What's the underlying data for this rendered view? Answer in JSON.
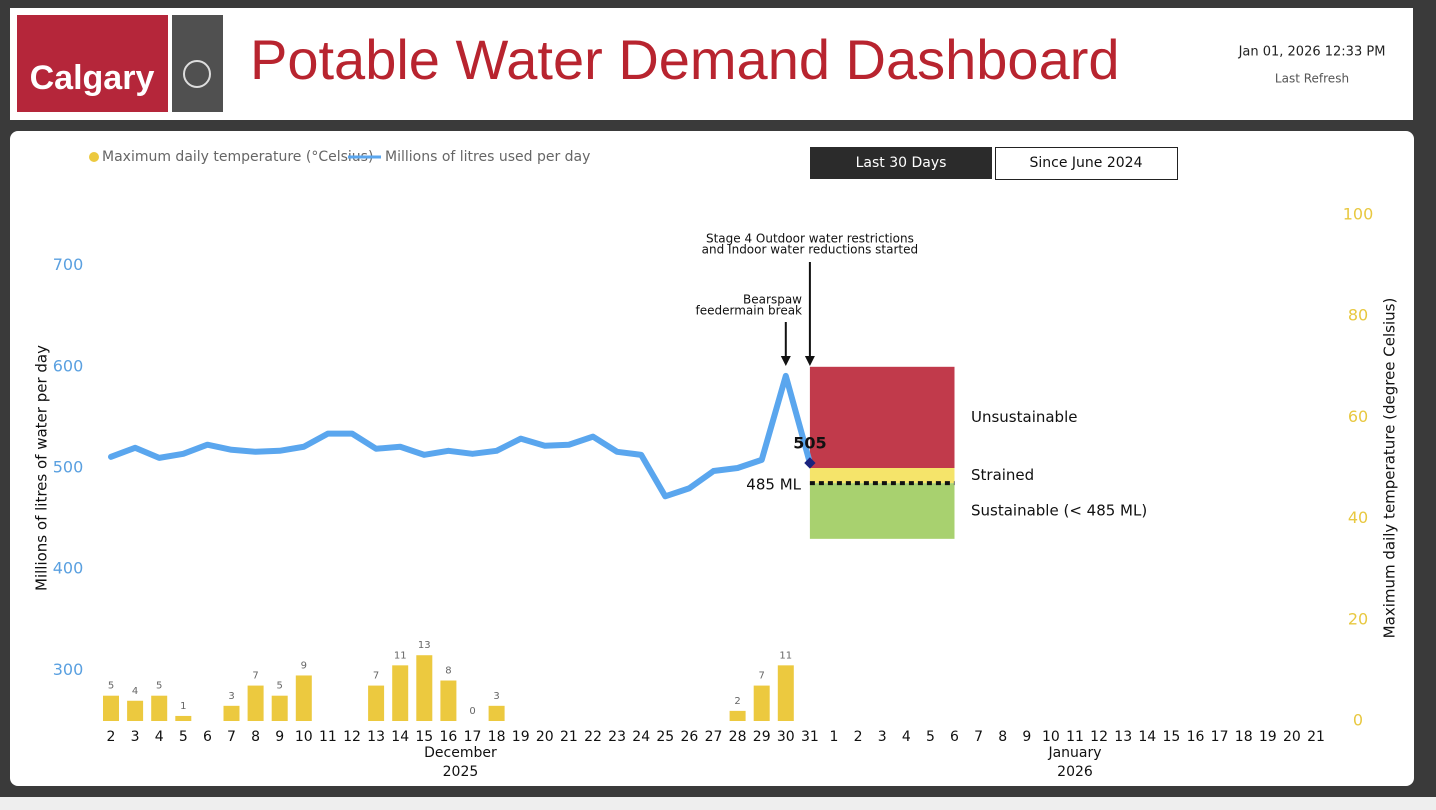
{
  "header": {
    "logo": "Calgary",
    "title": "Potable Water Demand Dashboard",
    "refresh_time": "Jan 01, 2026 12:33 PM",
    "refresh_label": "Last Refresh"
  },
  "buttons": [
    "Last 30 Days",
    "Since June 2024"
  ],
  "chart_data": {
    "type": "combo",
    "y_label": "Millions of litres of water per day",
    "y2_label": "Maximum daily temperature (degree Celsius)",
    "categories": [
      "2",
      "3",
      "4",
      "5",
      "6",
      "7",
      "8",
      "9",
      "10",
      "11",
      "12",
      "13",
      "14",
      "15",
      "16",
      "17",
      "18",
      "19",
      "20",
      "21",
      "22",
      "23",
      "24",
      "25",
      "26",
      "27",
      "28",
      "29",
      "30",
      "31",
      "1",
      "2",
      "3",
      "4",
      "5",
      "6",
      "7",
      "8",
      "9",
      "10",
      "11",
      "12",
      "13",
      "14",
      "15",
      "16",
      "17",
      "18",
      "19",
      "20",
      "21"
    ],
    "months": [
      "December",
      "January"
    ],
    "years": [
      "2025",
      "2026"
    ],
    "series": [
      {
        "name": "Maximum daily temperature (°Celsius)",
        "type": "bar",
        "axis": "y2",
        "color": "#ecc93f",
        "values": [
          5,
          4,
          5,
          1,
          null,
          3,
          7,
          5,
          9,
          null,
          null,
          7,
          11,
          13,
          8,
          0,
          3,
          null,
          null,
          null,
          null,
          null,
          null,
          null,
          null,
          null,
          2,
          7,
          11,
          null,
          null,
          null,
          null,
          null,
          null,
          null,
          null,
          null,
          null,
          null,
          null,
          null,
          null,
          null,
          null,
          null,
          null,
          null,
          null,
          null,
          null
        ]
      },
      {
        "name": "Millions of litres used per day",
        "type": "line",
        "color": "#5aa6ee",
        "values": [
          511,
          520,
          510,
          514,
          523,
          518,
          516,
          517,
          521,
          534,
          534,
          519,
          521,
          513,
          517,
          514,
          517,
          529,
          522,
          523,
          531,
          516,
          513,
          472,
          480,
          497,
          500,
          508,
          591,
          505,
          null,
          null,
          null,
          null,
          null,
          null,
          null,
          null,
          null,
          null,
          null,
          null,
          null,
          null,
          null,
          null,
          null,
          null,
          null,
          null,
          null
        ]
      }
    ],
    "ylim": [
      250,
      750
    ],
    "yticks": [
      300,
      400,
      500,
      600,
      700
    ],
    "y2lim": [
      0,
      100
    ],
    "y2ticks": [
      0,
      20,
      40,
      60,
      80,
      100
    ],
    "bands": [
      {
        "name": "Unsustainable",
        "from": 500,
        "to": 600,
        "color": "#c13a4b"
      },
      {
        "name": "Strained",
        "from": 485,
        "to": 500,
        "color": "#f5e46a"
      },
      {
        "name": "Sustainable (< 485 ML)",
        "from": 430,
        "to": 485,
        "color": "#a8d16f"
      }
    ],
    "threshold": {
      "value": 485,
      "label": "485 ML"
    },
    "annotations": [
      {
        "lines": [
          "Bearspaw",
          "feedermain break"
        ]
      },
      {
        "lines": [
          "Stage 4 Outdoor water restrictions",
          "and Indoor water reductions started"
        ]
      }
    ]
  }
}
